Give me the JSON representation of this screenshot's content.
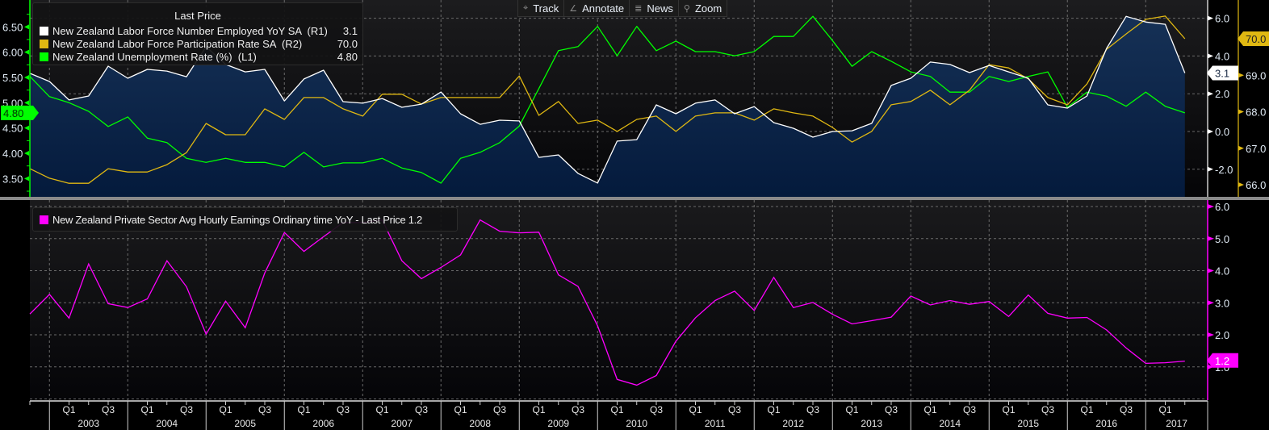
{
  "toolbar": {
    "items": [
      {
        "label": "Track",
        "icon": "crosshair-icon",
        "glyph": "⌖"
      },
      {
        "label": "Annotate",
        "icon": "pencil-icon",
        "glyph": "∠"
      },
      {
        "label": "News",
        "icon": "news-icon",
        "glyph": "≣"
      },
      {
        "label": "Zoom",
        "icon": "magnifier-icon",
        "glyph": "⚲"
      }
    ]
  },
  "legend_top": {
    "header": "Last Price",
    "rows": [
      {
        "label": "New Zealand Labor Force Number Employed YoY SA  (R1)",
        "value": "3.1",
        "color": "#ffffff"
      },
      {
        "label": "New Zealand Labor Force Participation Rate SA  (R2)",
        "value": "70.0",
        "color": "#e0b812"
      },
      {
        "label": "New Zealand Unemployment Rate (%)  (L1)",
        "value": "4.80",
        "color": "#00ff00"
      }
    ]
  },
  "legend_bottom": {
    "label": "New Zealand Private Sector Avg Hourly Earnings Ordinary time YoY - Last Price 1.2",
    "color": "#ff00ff"
  },
  "chart_data": [
    {
      "type": "line",
      "panel": "top",
      "x_start": "2002 Q3",
      "x_end": "2017 Q2",
      "frequency": "quarterly",
      "axes": {
        "L1": {
          "ticks": [
            "6.50",
            "6.00",
            "5.50",
            "5.00",
            "4.50",
            "4.00",
            "3.50"
          ],
          "tick_values": [
            6.5,
            6.0,
            5.5,
            5.0,
            4.5,
            4.0,
            3.5
          ],
          "color": "#00ff00",
          "last_tag": "4.80"
        },
        "R1": {
          "ticks": [
            "6.0",
            "4.0",
            "2.0",
            "0.0",
            "-2.0"
          ],
          "tick_values": [
            6,
            4,
            2,
            0,
            -2
          ],
          "color": "#ffffff",
          "last_tag": "3.1"
        },
        "R2": {
          "ticks": [
            "69.0",
            "68.0",
            "67.0",
            "66.0"
          ],
          "tick_values": [
            69,
            68,
            67,
            66
          ],
          "color": "#e0b812",
          "last_tag": "70.0"
        }
      },
      "series": [
        {
          "name": "New Zealand Labor Force Number Employed YoY SA",
          "axis": "R1",
          "color": "#ffffff",
          "area": true,
          "values": [
            3.08,
            2.65,
            1.67,
            1.88,
            3.46,
            2.82,
            3.29,
            3.2,
            2.9,
            4.49,
            3.55,
            3.16,
            3.29,
            1.62,
            2.78,
            3.25,
            1.58,
            1.5,
            1.75,
            1.28,
            1.45,
            2.09,
            0.94,
            0.38,
            0.6,
            0.56,
            -1.37,
            -1.24,
            -2.22,
            -2.73,
            -0.51,
            -0.43,
            1.41,
            0.94,
            1.5,
            1.67,
            0.94,
            1.32,
            0.47,
            0.17,
            -0.3,
            0.0,
            0.04,
            0.43,
            2.44,
            2.82,
            3.68,
            3.55,
            3.12,
            3.5,
            3.16,
            2.82,
            1.41,
            1.24,
            1.88,
            4.4,
            6.1,
            5.8,
            5.68,
            3.1
          ]
        },
        {
          "name": "New Zealand Labor Force Participation Rate SA",
          "axis": "R2",
          "color": "#e0b812",
          "values": [
            66.44,
            66.18,
            66.04,
            66.04,
            66.44,
            66.35,
            66.35,
            66.55,
            66.88,
            67.68,
            67.37,
            67.37,
            68.08,
            67.79,
            68.39,
            68.39,
            68.08,
            67.88,
            68.48,
            68.48,
            68.21,
            68.39,
            68.39,
            68.39,
            68.39,
            68.98,
            67.9,
            68.28,
            67.68,
            67.77,
            67.46,
            67.79,
            67.88,
            67.46,
            67.88,
            67.97,
            67.97,
            67.77,
            68.08,
            67.97,
            67.88,
            67.57,
            67.17,
            67.46,
            68.19,
            68.28,
            68.59,
            68.19,
            68.59,
            69.29,
            69.2,
            68.9,
            68.39,
            68.19,
            68.76,
            69.71,
            70.13,
            70.53,
            70.62,
            70.0
          ]
        },
        {
          "name": "New Zealand Unemployment Rate (%)",
          "axis": "L1",
          "color": "#00ff00",
          "values": [
            5.52,
            5.12,
            5.0,
            4.83,
            4.53,
            4.72,
            4.3,
            4.21,
            3.9,
            3.82,
            3.9,
            3.82,
            3.82,
            3.73,
            4.02,
            3.73,
            3.81,
            3.81,
            3.9,
            3.71,
            3.62,
            3.41,
            3.9,
            4.02,
            4.21,
            4.54,
            5.28,
            6.03,
            6.11,
            6.51,
            5.93,
            6.51,
            6.03,
            6.22,
            6.01,
            6.01,
            5.93,
            6.01,
            6.31,
            6.31,
            6.71,
            6.23,
            5.72,
            6.01,
            5.82,
            5.61,
            5.52,
            5.21,
            5.21,
            5.52,
            5.42,
            5.52,
            5.61,
            4.91,
            5.21,
            5.13,
            4.93,
            5.21,
            4.93,
            4.8
          ]
        }
      ]
    },
    {
      "type": "line",
      "panel": "bottom",
      "x_start": "2002 Q3",
      "x_end": "2017 Q2",
      "frequency": "quarterly",
      "axes": {
        "R": {
          "ticks": [
            "6.0",
            "5.0",
            "4.0",
            "3.0",
            "2.0",
            "1.0"
          ],
          "tick_values": [
            6,
            5,
            4,
            3,
            2,
            1
          ],
          "ylim": [
            0,
            6
          ],
          "color": "#ff00ff",
          "last_tag": "1.2"
        }
      },
      "series": [
        {
          "name": "New Zealand Private Sector Avg Hourly Earnings Ordinary time YoY",
          "color": "#ff00ff",
          "values": [
            2.65,
            3.26,
            2.52,
            4.21,
            2.97,
            2.85,
            3.12,
            4.31,
            3.5,
            2.02,
            3.05,
            2.22,
            3.93,
            5.19,
            4.6,
            5.06,
            5.5,
            5.5,
            5.58,
            4.31,
            3.75,
            4.1,
            4.49,
            5.58,
            5.23,
            5.18,
            5.2,
            3.87,
            3.51,
            2.28,
            0.61,
            0.43,
            0.73,
            1.8,
            2.53,
            3.07,
            3.36,
            2.76,
            3.79,
            2.85,
            3.01,
            2.64,
            2.34,
            2.44,
            2.55,
            3.21,
            2.93,
            3.07,
            2.95,
            3.04,
            2.57,
            3.24,
            2.67,
            2.52,
            2.54,
            2.15,
            1.59,
            1.11,
            1.13,
            1.18
          ]
        }
      ]
    }
  ],
  "x_axis": {
    "quarter_labels": [
      "Q1",
      "Q3"
    ],
    "years": [
      "2003",
      "2004",
      "2005",
      "2006",
      "2007",
      "2008",
      "2009",
      "2010",
      "2011",
      "2012",
      "2013",
      "2014",
      "2015",
      "2016",
      "2017"
    ]
  }
}
